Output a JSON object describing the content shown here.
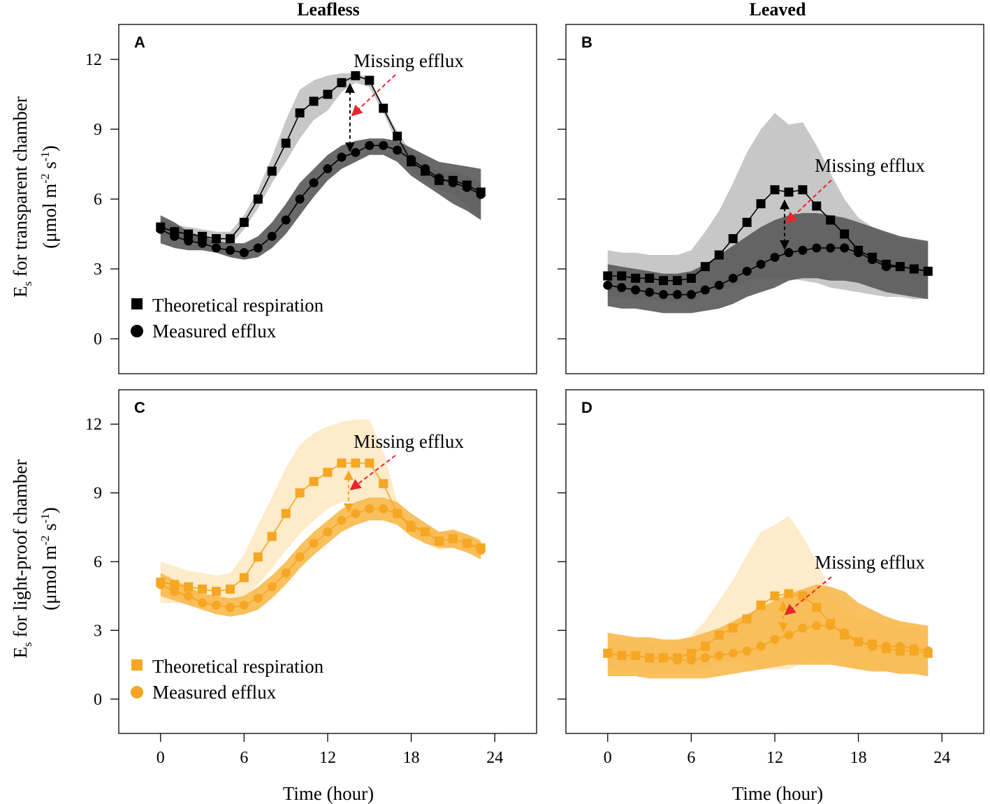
{
  "figure": {
    "column_titles": [
      "Leafless",
      "Leaved"
    ],
    "y_axis_titles": {
      "top": {
        "main": "E",
        "sub": "s",
        "rest": " for transparent chamber",
        "unit_pre": "(μmol m",
        "unit_sup1": "-2",
        "unit_mid": " s",
        "unit_sup2": "-1",
        "unit_post": ")"
      },
      "bottom": {
        "main": "E",
        "sub": "s",
        "rest": " for light-proof chamber",
        "unit_pre": "(μmol m",
        "unit_sup1": "-2",
        "unit_mid": " s",
        "unit_sup2": "-1",
        "unit_post": ")"
      }
    },
    "x_axis_title": "Time (hour)",
    "legend_top": {
      "theoretical": "Theoretical respiration",
      "measured": "Measured efflux"
    },
    "legend_bottom": {
      "theoretical": "Theoretical respiration",
      "measured": "Measured efflux"
    }
  },
  "colors": {
    "black_line": "#000000",
    "band_dark": "#595959",
    "band_light": "#bdbdbd",
    "orange_line": "#f5a623",
    "band_orange_dark": "#f8b94d",
    "band_orange_light": "#fde7bf",
    "annotation_arrow": "#e8262b"
  },
  "chart_data": [
    {
      "panel": "A",
      "type": "line",
      "column": "Leafless",
      "chamber": "transparent",
      "xlabel": "Time (hour)",
      "ylabel": "Es for transparent chamber (μmol m-2 s-1)",
      "xlim": [
        -3,
        27
      ],
      "ylim": [
        -1.5,
        13.5
      ],
      "xticks": [
        0,
        6,
        12,
        18,
        24
      ],
      "yticks": [
        0,
        3,
        6,
        9,
        12
      ],
      "annotation": "Missing efflux",
      "x": [
        0,
        1,
        2,
        3,
        4,
        5,
        6,
        7,
        8,
        9,
        10,
        11,
        12,
        13,
        14,
        15,
        16,
        17,
        18,
        19,
        20,
        21,
        22,
        23
      ],
      "series": [
        {
          "name": "Theoretical respiration",
          "marker": "square",
          "color": "#000000",
          "values": [
            4.8,
            4.6,
            4.5,
            4.4,
            4.3,
            4.3,
            5.0,
            6.0,
            7.2,
            8.4,
            9.7,
            10.2,
            10.5,
            11.0,
            11.3,
            11.1,
            9.9,
            8.7,
            7.6,
            7.2,
            6.8,
            6.8,
            6.6,
            6.3
          ],
          "band": {
            "color": "#bdbdbd",
            "upper": [
              5.1,
              4.9,
              4.8,
              4.7,
              4.6,
              4.6,
              5.3,
              6.4,
              7.8,
              9.4,
              10.7,
              11.1,
              11.3,
              11.4,
              11.4,
              11.2,
              10.0,
              8.9,
              8.0,
              7.6,
              7.2,
              7.2,
              7.0,
              6.7
            ],
            "lower": [
              4.5,
              4.3,
              4.2,
              4.1,
              4.0,
              4.0,
              4.7,
              5.6,
              6.7,
              7.6,
              8.6,
              9.4,
              9.8,
              10.6,
              11.0,
              10.8,
              9.7,
              8.4,
              7.2,
              6.8,
              6.4,
              6.2,
              5.7,
              5.2
            ]
          }
        },
        {
          "name": "Measured efflux",
          "marker": "circle",
          "color": "#000000",
          "values": [
            4.7,
            4.4,
            4.2,
            4.1,
            3.9,
            3.8,
            3.7,
            3.9,
            4.4,
            5.1,
            6.0,
            6.7,
            7.3,
            7.8,
            8.0,
            8.3,
            8.3,
            8.1,
            7.7,
            7.3,
            6.9,
            6.7,
            6.5,
            6.2
          ],
          "band": {
            "color": "#595959",
            "upper": [
              5.3,
              5.0,
              4.6,
              4.4,
              4.2,
              4.1,
              4.1,
              4.4,
              5.0,
              5.8,
              6.7,
              7.3,
              7.9,
              8.3,
              8.5,
              8.6,
              8.6,
              8.5,
              8.2,
              7.9,
              7.6,
              7.5,
              7.4,
              7.3
            ],
            "lower": [
              4.1,
              3.9,
              3.8,
              3.8,
              3.7,
              3.5,
              3.4,
              3.5,
              3.9,
              4.5,
              5.3,
              6.1,
              6.8,
              7.3,
              7.6,
              7.9,
              7.9,
              7.6,
              7.0,
              6.6,
              6.2,
              5.8,
              5.5,
              5.1
            ]
          }
        }
      ],
      "arrow": {
        "x": 13.6,
        "from": 10.9,
        "to": 8.1
      }
    },
    {
      "panel": "B",
      "type": "line",
      "column": "Leaved",
      "chamber": "transparent",
      "xlabel": "Time (hour)",
      "ylabel": "Es for transparent chamber (μmol m-2 s-1)",
      "xlim": [
        -3,
        27
      ],
      "ylim": [
        -1.5,
        13.5
      ],
      "xticks": [
        0,
        6,
        12,
        18,
        24
      ],
      "yticks": [
        0,
        3,
        6,
        9,
        12
      ],
      "annotation": "Missing efflux",
      "x": [
        0,
        1,
        2,
        3,
        4,
        5,
        6,
        7,
        8,
        9,
        10,
        11,
        12,
        13,
        14,
        15,
        16,
        17,
        18,
        19,
        20,
        21,
        22,
        23
      ],
      "series": [
        {
          "name": "Theoretical respiration",
          "marker": "square",
          "color": "#000000",
          "values": [
            2.7,
            2.7,
            2.6,
            2.6,
            2.5,
            2.5,
            2.6,
            3.1,
            3.6,
            4.3,
            5.0,
            5.8,
            6.4,
            6.3,
            6.4,
            5.7,
            5.1,
            4.5,
            3.8,
            3.5,
            3.2,
            3.1,
            3.0,
            2.9
          ],
          "band": {
            "color": "#bdbdbd",
            "upper": [
              3.8,
              3.7,
              3.7,
              3.6,
              3.6,
              3.6,
              3.8,
              4.6,
              5.5,
              6.7,
              8.0,
              9.0,
              9.7,
              9.2,
              9.3,
              8.3,
              7.1,
              6.0,
              5.2,
              4.8,
              4.5,
              4.3,
              4.2,
              4.1
            ],
            "lower": [
              1.8,
              1.8,
              1.7,
              1.7,
              1.6,
              1.6,
              1.6,
              1.9,
              2.1,
              2.3,
              2.5,
              2.6,
              2.6,
              2.6,
              2.5,
              2.4,
              2.2,
              2.1,
              2.0,
              1.9,
              1.8,
              1.8,
              1.7,
              1.7
            ]
          }
        },
        {
          "name": "Measured efflux",
          "marker": "circle",
          "color": "#000000",
          "values": [
            2.3,
            2.2,
            2.1,
            2.0,
            1.9,
            1.9,
            1.9,
            2.1,
            2.3,
            2.6,
            2.9,
            3.2,
            3.5,
            3.7,
            3.8,
            3.9,
            3.9,
            3.9,
            3.7,
            3.4,
            3.1,
            3.1,
            3.0,
            2.9
          ],
          "band": {
            "color": "#595959",
            "upper": [
              3.2,
              3.1,
              3.0,
              2.9,
              2.8,
              2.8,
              2.9,
              3.2,
              3.6,
              4.0,
              4.4,
              4.8,
              5.1,
              5.3,
              5.4,
              5.4,
              5.3,
              5.2,
              5.0,
              4.8,
              4.6,
              4.4,
              4.3,
              4.2
            ],
            "lower": [
              1.4,
              1.3,
              1.3,
              1.2,
              1.1,
              1.1,
              1.1,
              1.2,
              1.3,
              1.5,
              1.8,
              2.0,
              2.2,
              2.5,
              2.6,
              2.6,
              2.5,
              2.5,
              2.4,
              2.2,
              2.0,
              1.9,
              1.8,
              1.7
            ]
          }
        }
      ],
      "arrow": {
        "x": 12.7,
        "from": 5.9,
        "to": 3.9
      }
    },
    {
      "panel": "C",
      "type": "line",
      "column": "Leafless",
      "chamber": "light-proof",
      "xlabel": "Time (hour)",
      "ylabel": "Es for light-proof chamber (μmol m-2 s-1)",
      "xlim": [
        -3,
        27
      ],
      "ylim": [
        -1.5,
        13.5
      ],
      "xticks": [
        0,
        6,
        12,
        18,
        24
      ],
      "yticks": [
        0,
        3,
        6,
        9,
        12
      ],
      "annotation": "Missing efflux",
      "x": [
        0,
        1,
        2,
        3,
        4,
        5,
        6,
        7,
        8,
        9,
        10,
        11,
        12,
        13,
        14,
        15,
        16,
        17,
        18,
        19,
        20,
        21,
        22,
        23
      ],
      "series": [
        {
          "name": "Theoretical respiration",
          "marker": "square",
          "color": "#f5a623",
          "values": [
            5.1,
            5.0,
            4.9,
            4.8,
            4.7,
            4.8,
            5.3,
            6.2,
            7.1,
            8.1,
            9.0,
            9.5,
            9.9,
            10.3,
            10.3,
            10.3,
            9.4,
            8.1,
            7.5,
            7.3,
            6.9,
            7.0,
            6.8,
            6.6
          ],
          "band": {
            "color": "#fde7bf",
            "upper": [
              6.0,
              5.8,
              5.6,
              5.5,
              5.4,
              5.5,
              6.3,
              7.6,
              8.8,
              10.1,
              11.1,
              11.6,
              11.9,
              12.1,
              12.2,
              12.2,
              10.8,
              8.6,
              7.6,
              7.4,
              7.3,
              7.3,
              7.2,
              7.0
            ],
            "lower": [
              4.2,
              4.2,
              4.2,
              4.1,
              4.0,
              4.1,
              4.4,
              5.0,
              5.7,
              6.5,
              7.2,
              7.8,
              8.3,
              8.6,
              8.6,
              8.4,
              8.2,
              7.7,
              7.1,
              6.8,
              6.5,
              6.6,
              6.4,
              6.2
            ]
          }
        },
        {
          "name": "Measured efflux",
          "marker": "circle",
          "color": "#f5a623",
          "values": [
            5.0,
            4.7,
            4.5,
            4.2,
            4.1,
            4.0,
            4.1,
            4.4,
            4.9,
            5.5,
            6.2,
            6.8,
            7.3,
            7.8,
            8.1,
            8.3,
            8.3,
            8.1,
            7.6,
            7.3,
            6.9,
            7.0,
            6.8,
            6.5
          ],
          "band": {
            "color": "#f8b94d",
            "upper": [
              5.5,
              5.2,
              4.9,
              4.6,
              4.5,
              4.4,
              4.5,
              4.9,
              5.4,
              6.0,
              6.7,
              7.3,
              7.8,
              8.3,
              8.6,
              8.8,
              8.8,
              8.6,
              8.1,
              7.7,
              7.3,
              7.4,
              7.2,
              6.9
            ],
            "lower": [
              4.5,
              4.3,
              4.1,
              3.9,
              3.7,
              3.6,
              3.7,
              3.9,
              4.4,
              5.0,
              5.7,
              6.3,
              6.8,
              7.3,
              7.6,
              7.8,
              7.8,
              7.6,
              7.1,
              6.8,
              6.6,
              6.6,
              6.4,
              6.1
            ]
          }
        }
      ],
      "arrow": {
        "x": 13.5,
        "from": 9.9,
        "to": 8.2
      }
    },
    {
      "panel": "D",
      "type": "line",
      "column": "Leaved",
      "chamber": "light-proof",
      "xlabel": "Time (hour)",
      "ylabel": "Es for light-proof chamber (μmol m-2 s-1)",
      "xlim": [
        -3,
        27
      ],
      "ylim": [
        -1.5,
        13.5
      ],
      "xticks": [
        0,
        6,
        12,
        18,
        24
      ],
      "yticks": [
        0,
        3,
        6,
        9,
        12
      ],
      "annotation": "Missing efflux",
      "x": [
        0,
        1,
        2,
        3,
        4,
        5,
        6,
        7,
        8,
        9,
        10,
        11,
        12,
        13,
        14,
        15,
        16,
        17,
        18,
        19,
        20,
        21,
        22,
        23
      ],
      "series": [
        {
          "name": "Theoretical respiration",
          "marker": "square",
          "color": "#f5a623",
          "values": [
            2.0,
            1.9,
            1.9,
            1.8,
            1.8,
            1.8,
            2.0,
            2.3,
            2.8,
            3.1,
            3.5,
            4.1,
            4.5,
            4.6,
            4.5,
            4.0,
            3.3,
            2.8,
            2.5,
            2.4,
            2.2,
            2.1,
            2.1,
            2.0
          ],
          "band": {
            "color": "#fde7bf",
            "upper": [
              2.7,
              2.6,
              2.6,
              2.5,
              2.5,
              2.5,
              2.8,
              3.4,
              4.3,
              5.2,
              6.3,
              7.3,
              7.6,
              8.0,
              7.1,
              6.0,
              4.7,
              3.9,
              3.5,
              3.4,
              3.3,
              3.2,
              3.1,
              3.0
            ],
            "lower": [
              1.3,
              1.2,
              1.2,
              1.1,
              1.1,
              1.1,
              1.2,
              1.4,
              1.6,
              1.6,
              1.6,
              1.3,
              1.3,
              1.3,
              1.6,
              1.8,
              1.7,
              1.4,
              1.3,
              1.3,
              1.2,
              1.1,
              1.1,
              1.0
            ]
          }
        },
        {
          "name": "Measured efflux",
          "marker": "circle",
          "color": "#f5a623",
          "values": [
            2.0,
            1.9,
            1.9,
            1.8,
            1.8,
            1.7,
            1.7,
            1.8,
            1.9,
            2.0,
            2.1,
            2.3,
            2.6,
            2.8,
            3.1,
            3.2,
            3.2,
            2.9,
            2.5,
            2.3,
            2.3,
            2.3,
            2.2,
            2.1
          ],
          "band": {
            "color": "#f8b94d",
            "upper": [
              2.9,
              2.8,
              2.7,
              2.7,
              2.6,
              2.6,
              2.7,
              2.9,
              3.1,
              3.4,
              3.7,
              4.0,
              4.3,
              4.6,
              4.8,
              5.0,
              4.9,
              4.7,
              4.2,
              3.9,
              3.6,
              3.4,
              3.3,
              3.2
            ],
            "lower": [
              1.0,
              1.0,
              1.0,
              0.9,
              0.9,
              0.9,
              0.9,
              0.9,
              1.0,
              1.1,
              1.2,
              1.3,
              1.4,
              1.5,
              1.5,
              1.5,
              1.5,
              1.4,
              1.3,
              1.2,
              1.2,
              1.1,
              1.1,
              1.0
            ]
          }
        }
      ],
      "arrow": {
        "x": 12.6,
        "from": 4.2,
        "to": 3.0
      }
    }
  ]
}
